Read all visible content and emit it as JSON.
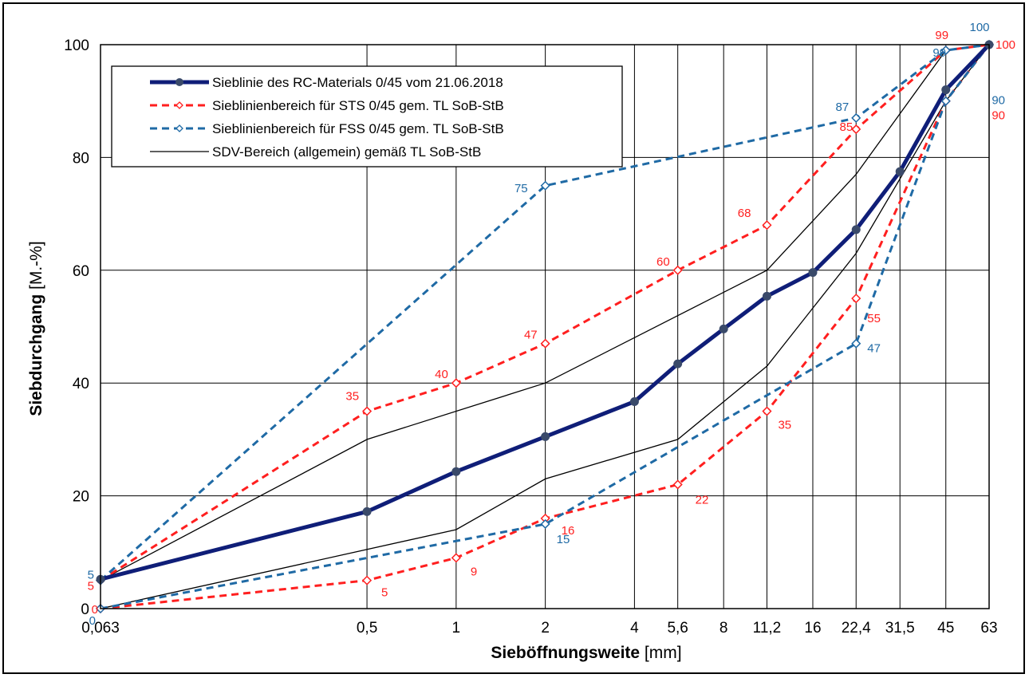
{
  "chart_data": {
    "type": "line",
    "x_axis_scale": "log",
    "x_categories": [
      "0,063",
      "0,5",
      "1",
      "2",
      "4",
      "5,6",
      "8",
      "11,2",
      "16",
      "22,4",
      "31,5",
      "45",
      "63"
    ],
    "x_values": [
      0.063,
      0.5,
      1,
      2,
      4,
      5.6,
      8,
      11.2,
      16,
      22.4,
      31.5,
      45,
      63
    ],
    "xlabel_bold": "Sieböffnungsweite",
    "xlabel_unit": " [mm]",
    "ylabel_bold": "Siebdurchgang",
    "ylabel_unit": " [M.-%]",
    "ylim": [
      0,
      100
    ],
    "y_ticks": [
      "0",
      "20",
      "40",
      "60",
      "80",
      "100"
    ],
    "grid": "on",
    "legend_position": "top-left",
    "series": [
      {
        "name": "Sieblinie des RC-Materials 0/45 vom 21.06.2018",
        "color": "#0f1e78",
        "style": "solid-thick",
        "marker": "circle",
        "points": [
          [
            0.063,
            5.2
          ],
          [
            0.5,
            17.2
          ],
          [
            1,
            24.3
          ],
          [
            2,
            30.5
          ],
          [
            4,
            36.7
          ],
          [
            5.6,
            43.4
          ],
          [
            8,
            49.6
          ],
          [
            11.2,
            55.4
          ],
          [
            16,
            59.6
          ],
          [
            22.4,
            67.2
          ],
          [
            31.5,
            77.5
          ],
          [
            45,
            92
          ],
          [
            63,
            100
          ]
        ]
      },
      {
        "name": "Sieblinienbereich für STS 0/45 gem. TL SoB-StB",
        "color": "#ff1f1f",
        "style": "dashed",
        "marker": "diamond",
        "points": [
          [
            0.063,
            5
          ],
          [
            0.5,
            35
          ],
          [
            1,
            40
          ],
          [
            2,
            47
          ],
          [
            5.6,
            60
          ],
          [
            11.2,
            68
          ],
          [
            22.4,
            85
          ],
          [
            45,
            99
          ],
          [
            63,
            100
          ]
        ]
      },
      {
        "color": "#ff1f1f",
        "style": "dashed",
        "marker": "diamond",
        "points": [
          [
            0.063,
            0
          ],
          [
            0.5,
            5
          ],
          [
            1,
            9
          ],
          [
            2,
            16
          ],
          [
            5.6,
            22
          ],
          [
            11.2,
            35
          ],
          [
            22.4,
            55
          ],
          [
            45,
            90
          ],
          [
            63,
            100
          ]
        ]
      },
      {
        "name": "Sieblinienbereich für FSS 0/45 gem. TL SoB-StB",
        "color": "#1f6aa5",
        "style": "dashed",
        "marker": "diamond",
        "points": [
          [
            0.063,
            5
          ],
          [
            2,
            75
          ],
          [
            22.4,
            87
          ],
          [
            45,
            99
          ],
          [
            63,
            100
          ]
        ]
      },
      {
        "color": "#1f6aa5",
        "style": "dashed",
        "marker": "diamond",
        "points": [
          [
            0.063,
            0
          ],
          [
            2,
            15
          ],
          [
            22.4,
            47
          ],
          [
            45,
            90
          ],
          [
            63,
            100
          ]
        ]
      },
      {
        "name": "SDV-Bereich (allgemein) gemäß TL SoB-StB",
        "color": "#000000",
        "style": "thin",
        "marker": "none",
        "points": [
          [
            0.063,
            5
          ],
          [
            0.5,
            30
          ],
          [
            2,
            40
          ],
          [
            11.2,
            60
          ],
          [
            22.4,
            77
          ],
          [
            45,
            99
          ],
          [
            63,
            100
          ]
        ]
      },
      {
        "color": "#000000",
        "style": "thin",
        "marker": "none",
        "points": [
          [
            0.063,
            0
          ],
          [
            1,
            14
          ],
          [
            2,
            23
          ],
          [
            5.6,
            30
          ],
          [
            11.2,
            43
          ],
          [
            22.4,
            63
          ],
          [
            45,
            90
          ],
          [
            63,
            100
          ]
        ]
      }
    ],
    "data_labels": [
      {
        "text": "5",
        "color": "#ff1f1f",
        "x": 0.063,
        "y": 5,
        "anchor": "end",
        "dx": -8,
        "dy": 12
      },
      {
        "text": "35",
        "color": "#ff1f1f",
        "x": 0.5,
        "y": 35,
        "anchor": "end",
        "dx": -10,
        "dy": -14
      },
      {
        "text": "40",
        "color": "#ff1f1f",
        "x": 1,
        "y": 40,
        "anchor": "end",
        "dx": -10,
        "dy": -6
      },
      {
        "text": "47",
        "color": "#ff1f1f",
        "x": 2,
        "y": 47,
        "anchor": "end",
        "dx": -10,
        "dy": -6
      },
      {
        "text": "60",
        "color": "#ff1f1f",
        "x": 5.6,
        "y": 60,
        "anchor": "end",
        "dx": -10,
        "dy": -6
      },
      {
        "text": "68",
        "color": "#ff1f1f",
        "x": 11.2,
        "y": 68,
        "anchor": "end",
        "dx": -20,
        "dy": -10
      },
      {
        "text": "85",
        "color": "#ff1f1f",
        "x": 22.4,
        "y": 85,
        "anchor": "end",
        "dx": -4,
        "dy": 2
      },
      {
        "text": "99",
        "color": "#ff1f1f",
        "x": 45,
        "y": 99,
        "anchor": "middle",
        "dx": -5,
        "dy": -14
      },
      {
        "text": "100",
        "color": "#ff1f1f",
        "x": 63,
        "y": 100,
        "anchor": "start",
        "dx": 8,
        "dy": 5
      },
      {
        "text": "0",
        "color": "#ff1f1f",
        "x": 0.063,
        "y": 0,
        "anchor": "end",
        "dx": -3,
        "dy": 6
      },
      {
        "text": "5",
        "color": "#ff1f1f",
        "x": 0.5,
        "y": 5,
        "anchor": "start",
        "dx": 18,
        "dy": 20
      },
      {
        "text": "9",
        "color": "#ff1f1f",
        "x": 1,
        "y": 9,
        "anchor": "start",
        "dx": 18,
        "dy": 22
      },
      {
        "text": "16",
        "color": "#ff1f1f",
        "x": 2,
        "y": 16,
        "anchor": "start",
        "dx": 20,
        "dy": 20
      },
      {
        "text": "22",
        "color": "#ff1f1f",
        "x": 5.6,
        "y": 22,
        "anchor": "start",
        "dx": 22,
        "dy": 24
      },
      {
        "text": "35",
        "color": "#ff1f1f",
        "x": 11.2,
        "y": 35,
        "anchor": "start",
        "dx": 14,
        "dy": 22
      },
      {
        "text": "55",
        "color": "#ff1f1f",
        "x": 22.4,
        "y": 55,
        "anchor": "start",
        "dx": 14,
        "dy": 30
      },
      {
        "text": "90",
        "color": "#ff1f1f",
        "x": 63,
        "y": 90,
        "anchor": "end",
        "dx": 20,
        "dy": 23
      },
      {
        "text": "5",
        "color": "#1f6aa5",
        "x": 0.063,
        "y": 5,
        "anchor": "end",
        "dx": -8,
        "dy": -2
      },
      {
        "text": "75",
        "color": "#1f6aa5",
        "x": 2,
        "y": 75,
        "anchor": "end",
        "dx": -22,
        "dy": 8
      },
      {
        "text": "87",
        "color": "#1f6aa5",
        "x": 22.4,
        "y": 87,
        "anchor": "end",
        "dx": -9,
        "dy": -9
      },
      {
        "text": "99",
        "color": "#1f6aa5",
        "x": 45,
        "y": 99,
        "anchor": "middle",
        "dx": -8,
        "dy": 8
      },
      {
        "text": "100",
        "color": "#1f6aa5",
        "x": 63,
        "y": 100,
        "anchor": "middle",
        "dx": -12,
        "dy": -17
      },
      {
        "text": "0",
        "color": "#1f6aa5",
        "x": 0.063,
        "y": 0,
        "anchor": "end",
        "dx": -6,
        "dy": 20
      },
      {
        "text": "15",
        "color": "#1f6aa5",
        "x": 2,
        "y": 15,
        "anchor": "start",
        "dx": 14,
        "dy": 24
      },
      {
        "text": "47",
        "color": "#1f6aa5",
        "x": 22.4,
        "y": 47,
        "anchor": "start",
        "dx": 14,
        "dy": 11
      },
      {
        "text": "90",
        "color": "#1f6aa5",
        "x": 63,
        "y": 90,
        "anchor": "end",
        "dx": 20,
        "dy": 4
      }
    ]
  }
}
